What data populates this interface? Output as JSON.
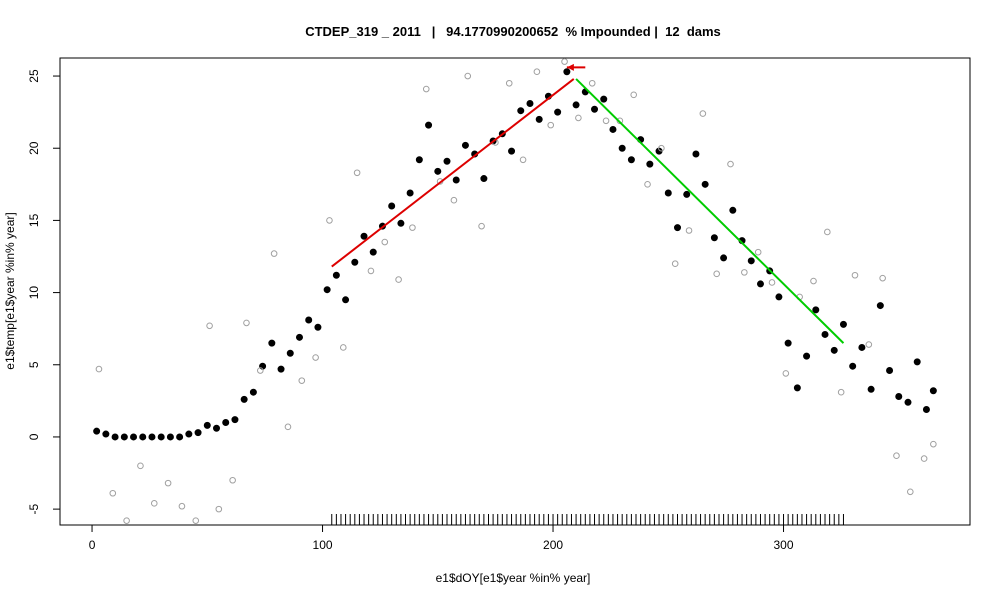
{
  "chart_data": {
    "type": "scatter",
    "title": "CTDEP_319 _ 2011   |   94.1770990200652  % Impounded |  12  dams",
    "x_label": "e1$dOY[e1$year %in% year]",
    "y_label": "e1$temp[e1$year %in% year]",
    "xlim": [
      -13.9,
      380.9
    ],
    "ylim": [
      -6.1,
      26.25
    ],
    "xticks": [
      0,
      100,
      200,
      300
    ],
    "yticks": [
      -5,
      0,
      5,
      10,
      15,
      20,
      25
    ],
    "series": [
      {
        "marker": "filled",
        "color": "#000000",
        "x": [
          2,
          6,
          10,
          14,
          18,
          22,
          26,
          30,
          34,
          38,
          42,
          46,
          50,
          54,
          58,
          62,
          66,
          70,
          74,
          78,
          82,
          86,
          90,
          94,
          98,
          102,
          106,
          110,
          114,
          118,
          122,
          126,
          130,
          134,
          138,
          142,
          146,
          150,
          154,
          158,
          162,
          166,
          170,
          174,
          178,
          182,
          186,
          190,
          194,
          198,
          202,
          206,
          210,
          214,
          218,
          222,
          226,
          230,
          234,
          238,
          242,
          246,
          250,
          254,
          258,
          262,
          266,
          270,
          274,
          278,
          282,
          286,
          290,
          294,
          298,
          302,
          306,
          310,
          314,
          318,
          322,
          326,
          330,
          334,
          338,
          342,
          346,
          350,
          354,
          358,
          362,
          365
        ],
        "values": [
          0.4,
          0.2,
          0,
          0,
          0,
          0,
          0,
          0,
          0,
          0,
          0.2,
          0.3,
          0.8,
          0.6,
          1.0,
          1.2,
          2.6,
          3.1,
          4.9,
          6.5,
          4.7,
          5.8,
          6.9,
          8.1,
          7.6,
          10.2,
          11.2,
          9.5,
          12.1,
          13.9,
          12.8,
          14.6,
          16.0,
          14.8,
          16.9,
          19.2,
          21.6,
          18.4,
          19.1,
          17.8,
          20.2,
          19.6,
          17.9,
          20.5,
          21.0,
          19.8,
          22.6,
          23.1,
          22.0,
          23.6,
          22.5,
          25.3,
          23.0,
          23.9,
          22.7,
          23.4,
          21.3,
          20.0,
          19.2,
          20.6,
          18.9,
          19.8,
          16.9,
          14.5,
          16.8,
          19.6,
          17.5,
          13.8,
          12.4,
          15.7,
          13.6,
          12.2,
          10.6,
          11.5,
          9.7,
          6.5,
          3.4,
          5.6,
          8.8,
          7.1,
          6.0,
          7.8,
          4.9,
          6.2,
          3.3,
          9.1,
          4.6,
          2.8,
          2.4,
          5.2,
          1.9,
          3.2
        ]
      },
      {
        "marker": "open",
        "color": "#a0a0a0",
        "x": [
          3,
          9,
          15,
          21,
          27,
          33,
          39,
          45,
          51,
          55,
          61,
          67,
          73,
          79,
          85,
          91,
          97,
          103,
          109,
          115,
          121,
          127,
          133,
          139,
          145,
          151,
          157,
          163,
          169,
          175,
          181,
          187,
          193,
          199,
          205,
          211,
          217,
          223,
          229,
          235,
          241,
          247,
          253,
          259,
          265,
          271,
          277,
          283,
          289,
          295,
          301,
          307,
          313,
          319,
          325,
          331,
          337,
          343,
          349,
          355,
          361,
          365
        ],
        "values": [
          4.7,
          -3.9,
          -5.8,
          -2.0,
          -4.6,
          -3.2,
          -4.8,
          -5.8,
          7.7,
          -5.0,
          -3.0,
          7.9,
          4.6,
          12.7,
          0.7,
          3.9,
          5.5,
          15.0,
          6.2,
          18.3,
          11.5,
          13.5,
          10.9,
          14.5,
          24.1,
          17.7,
          16.4,
          25.0,
          14.6,
          20.4,
          24.5,
          19.2,
          25.3,
          21.6,
          26.0,
          22.1,
          24.5,
          21.9,
          21.9,
          23.7,
          17.5,
          20.0,
          12.0,
          14.3,
          22.4,
          11.3,
          18.9,
          11.4,
          12.8,
          10.7,
          4.4,
          9.7,
          10.8,
          14.2,
          3.1,
          11.2,
          6.4,
          11.0,
          -1.3,
          -3.8,
          -1.5,
          -0.5
        ]
      }
    ],
    "fit_lines": [
      {
        "color": "#dd0000",
        "x": [
          104,
          209
        ],
        "values": [
          11.8,
          24.8
        ]
      },
      {
        "color": "#00cc00",
        "x": [
          210,
          326
        ],
        "values": [
          24.8,
          6.5
        ]
      }
    ],
    "arrow": {
      "color": "#dd0000",
      "x": [
        214,
        206
      ],
      "values": [
        25.6,
        25.6
      ]
    },
    "rug": [
      104,
      106,
      108,
      110,
      112,
      114,
      116,
      118,
      120,
      122,
      124,
      126,
      128,
      130,
      132,
      134,
      136,
      138,
      140,
      142,
      144,
      146,
      148,
      150,
      152,
      154,
      156,
      158,
      160,
      162,
      164,
      166,
      168,
      170,
      172,
      174,
      176,
      178,
      180,
      182,
      184,
      186,
      188,
      190,
      192,
      194,
      196,
      198,
      200,
      202,
      204,
      206,
      208,
      210,
      212,
      214,
      216,
      218,
      220,
      222,
      224,
      226,
      228,
      230,
      232,
      234,
      236,
      238,
      240,
      242,
      244,
      246,
      248,
      250,
      252,
      254,
      256,
      258,
      260,
      262,
      264,
      266,
      268,
      270,
      272,
      274,
      276,
      278,
      280,
      282,
      284,
      286,
      288,
      290,
      292,
      294,
      296,
      298,
      300,
      302,
      304,
      306,
      308,
      310,
      312,
      314,
      316,
      318,
      320,
      322,
      324,
      326
    ]
  }
}
